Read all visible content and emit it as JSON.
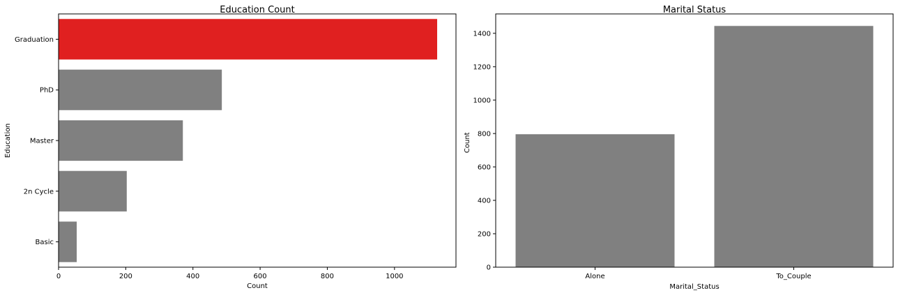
{
  "chart_data": [
    {
      "type": "bar",
      "orientation": "horizontal",
      "title": "Education Count",
      "xlabel": "Count",
      "ylabel": "Education",
      "categories": [
        "Graduation",
        "PhD",
        "Master",
        "2n Cycle",
        "Basic"
      ],
      "values": [
        1127,
        486,
        370,
        203,
        54
      ],
      "colors": [
        "#e02020",
        "#808080",
        "#808080",
        "#808080",
        "#808080"
      ],
      "xlim": [
        0,
        1183
      ],
      "xticks": [
        0,
        200,
        400,
        600,
        800,
        1000
      ],
      "grid": false
    },
    {
      "type": "bar",
      "orientation": "vertical",
      "title": "Marital Status",
      "xlabel": "Marital_Status",
      "ylabel": "Count",
      "categories": [
        "Alone",
        "To_Couple"
      ],
      "values": [
        796,
        1444
      ],
      "colors": [
        "#808080",
        "#808080"
      ],
      "ylim": [
        0,
        1516
      ],
      "yticks": [
        0,
        200,
        400,
        600,
        800,
        1000,
        1200,
        1400
      ],
      "grid": false
    }
  ]
}
